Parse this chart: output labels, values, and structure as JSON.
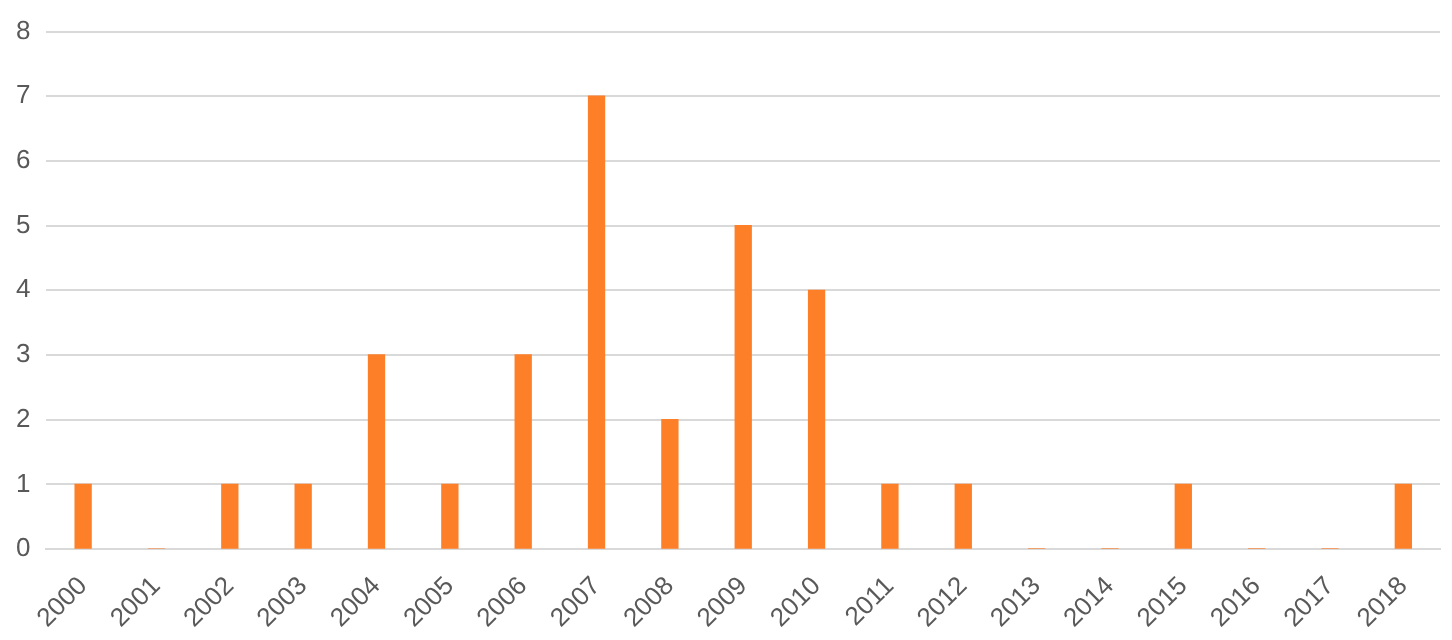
{
  "chart_data": {
    "type": "bar",
    "categories": [
      "2000",
      "2001",
      "2002",
      "2003",
      "2004",
      "2005",
      "2006",
      "2007",
      "2008",
      "2009",
      "2010",
      "2011",
      "2012",
      "2013",
      "2014",
      "2015",
      "2016",
      "2017",
      "2018"
    ],
    "values": [
      1,
      0,
      1,
      1,
      3,
      1,
      3,
      7,
      2,
      5,
      4,
      1,
      1,
      0,
      0,
      1,
      0,
      0,
      1
    ],
    "color": "#fd7f28",
    "ylim": [
      0,
      8
    ],
    "yticks": [
      0,
      1,
      2,
      3,
      4,
      5,
      6,
      7,
      8
    ],
    "grid": "y",
    "legend": false
  }
}
